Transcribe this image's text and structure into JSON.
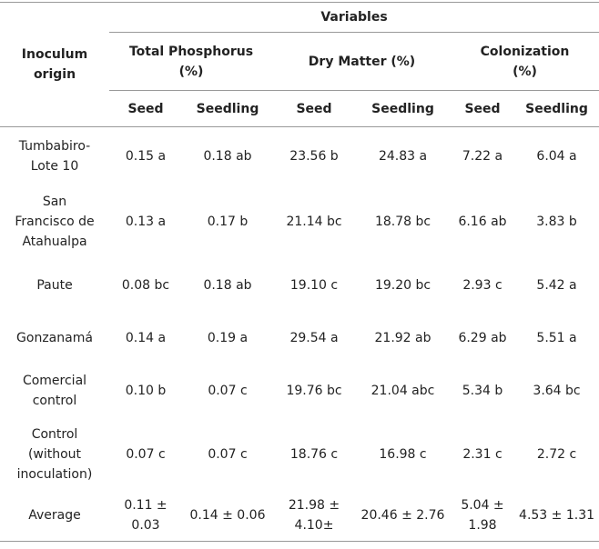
{
  "table": {
    "row_header": "Inoculum origin",
    "title": "Variables",
    "groups": [
      "Total Phosphorus (%)",
      "Dry Matter (%)",
      "Colonization (%)"
    ],
    "subheaders": [
      "Seed",
      "Seedling",
      "Seed",
      "Seedling",
      "Seed",
      "Seedling"
    ],
    "rows": [
      [
        "Tumbabiro-Lote 10",
        "0.15 a",
        "0.18 ab",
        "23.56 b",
        "24.83 a",
        "7.22 a",
        "6.04 a"
      ],
      [
        "San Francisco de Atahualpa",
        "0.13 a",
        "0.17 b",
        "21.14 bc",
        "18.78 bc",
        "6.16 ab",
        "3.83 b"
      ],
      [
        "Paute",
        "0.08 bc",
        "0.18 ab",
        "19.10 c",
        "19.20 bc",
        "2.93 c",
        "5.42 a"
      ],
      [
        "Gonzanamá",
        "0.14 a",
        "0.19 a",
        "29.54 a",
        "21.92 ab",
        "6.29 ab",
        "5.51 a"
      ],
      [
        "Comercial control",
        "0.10 b",
        "0.07 c",
        "19.76 bc",
        "21.04 abc",
        "5.34 b",
        "3.64 bc"
      ],
      [
        "Control (without inoculation)",
        "0.07 c",
        "0.07 c",
        "18.76 c",
        "16.98 c",
        "2.31 c",
        "2.72 c"
      ],
      [
        "Average",
        "0.11 ± 0.03",
        "0.14 ± 0.06",
        "21.98 ± 4.10±",
        "20.46 ± 2.76",
        "5.04 ± 1.98",
        "4.53 ± 1.31"
      ]
    ]
  }
}
